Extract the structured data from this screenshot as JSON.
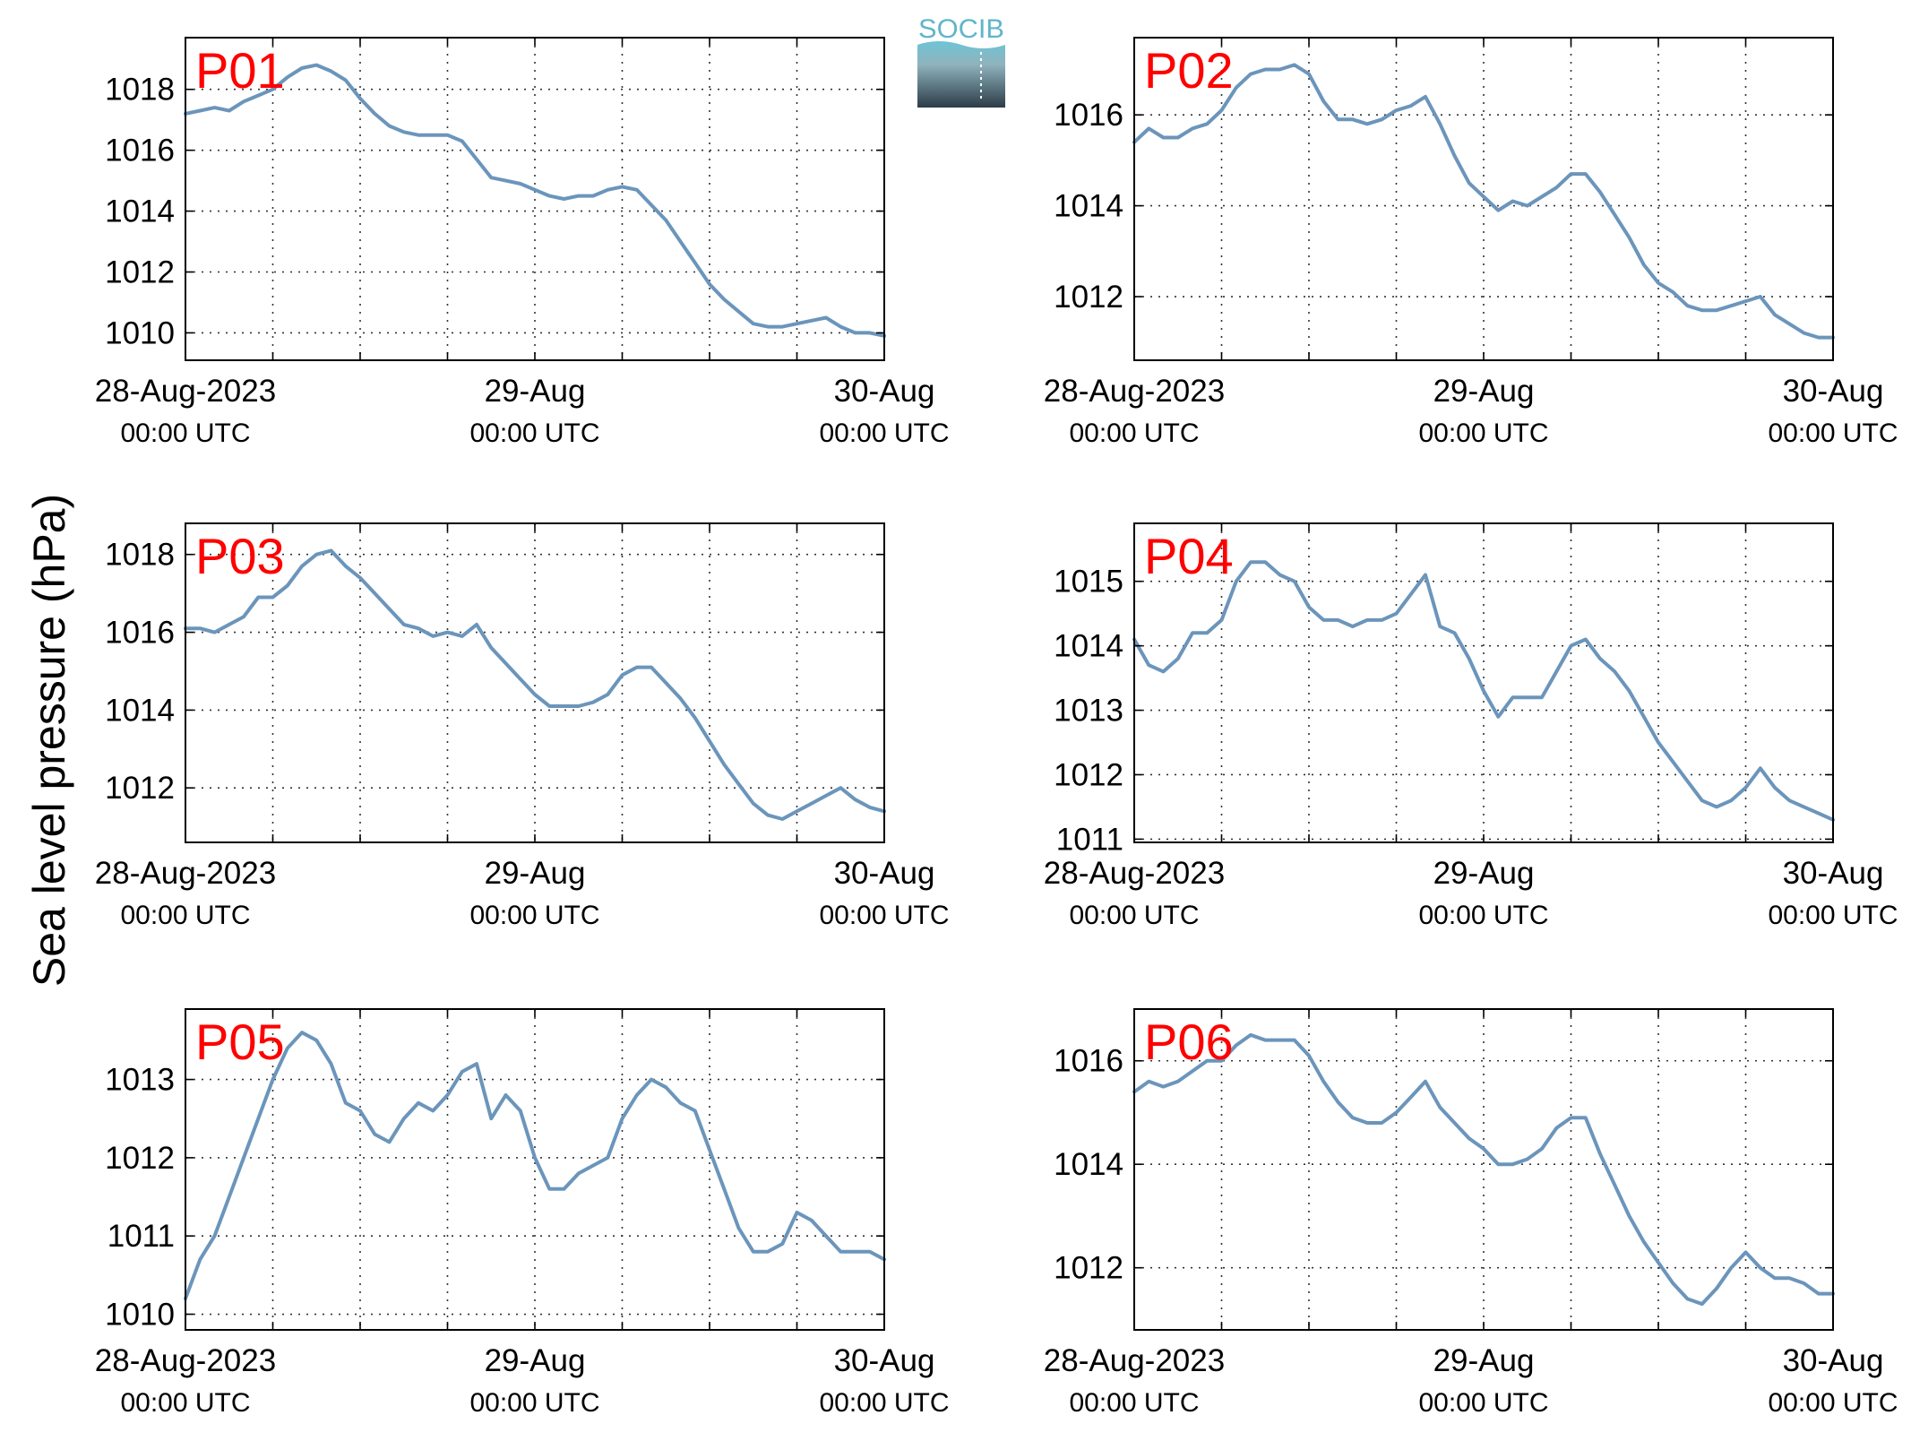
{
  "figure": {
    "ylabel": "Sea level pressure (hPa)",
    "logo_text": "SOCIB",
    "line_color": "#6b95bb",
    "label_color": "#ff0000"
  },
  "chart_data": [
    {
      "type": "line",
      "label": "P01",
      "grid": true,
      "xlim": [
        0,
        48
      ],
      "ylim": [
        1009.1,
        1019.7
      ],
      "yticks": [
        1010,
        1012,
        1014,
        1016,
        1018
      ],
      "xticks": [
        {
          "x": 0,
          "date": "28-Aug-2023",
          "time": "00:00 UTC"
        },
        {
          "x": 24,
          "date": "29-Aug",
          "time": "00:00 UTC"
        },
        {
          "x": 48,
          "date": "30-Aug",
          "time": "00:00 UTC"
        }
      ],
      "gridx": [
        6,
        12,
        18,
        30,
        36,
        42
      ],
      "x": [
        0,
        1,
        2,
        3,
        4,
        5,
        6,
        7,
        8,
        9,
        10,
        11,
        12,
        13,
        14,
        15,
        16,
        17,
        18,
        19,
        20,
        21,
        22,
        23,
        24,
        25,
        26,
        27,
        28,
        29,
        30,
        31,
        32,
        33,
        34,
        35,
        36,
        37,
        38,
        39,
        40,
        41,
        42,
        43,
        44,
        45,
        46,
        47,
        48
      ],
      "y": [
        1017.2,
        1017.3,
        1017.4,
        1017.3,
        1017.6,
        1017.8,
        1018.0,
        1018.4,
        1018.7,
        1018.8,
        1018.6,
        1018.3,
        1017.7,
        1017.2,
        1016.8,
        1016.6,
        1016.5,
        1016.5,
        1016.5,
        1016.3,
        1015.7,
        1015.1,
        1015.0,
        1014.9,
        1014.7,
        1014.5,
        1014.4,
        1014.5,
        1014.5,
        1014.7,
        1014.8,
        1014.7,
        1014.2,
        1013.7,
        1013.0,
        1012.3,
        1011.6,
        1011.1,
        1010.7,
        1010.3,
        1010.2,
        1010.2,
        1010.3,
        1010.4,
        1010.5,
        1010.2,
        1010.0,
        1010.0,
        1009.9
      ]
    },
    {
      "type": "line",
      "label": "P02",
      "grid": true,
      "xlim": [
        0,
        48
      ],
      "ylim": [
        1010.6,
        1017.7
      ],
      "yticks": [
        1012,
        1014,
        1016
      ],
      "xticks": [
        {
          "x": 0,
          "date": "28-Aug-2023",
          "time": "00:00 UTC"
        },
        {
          "x": 24,
          "date": "29-Aug",
          "time": "00:00 UTC"
        },
        {
          "x": 48,
          "date": "30-Aug",
          "time": "00:00 UTC"
        }
      ],
      "gridx": [
        6,
        12,
        18,
        30,
        36,
        42
      ],
      "x": [
        0,
        1,
        2,
        3,
        4,
        5,
        6,
        7,
        8,
        9,
        10,
        11,
        12,
        13,
        14,
        15,
        16,
        17,
        18,
        19,
        20,
        21,
        22,
        23,
        24,
        25,
        26,
        27,
        28,
        29,
        30,
        31,
        32,
        33,
        34,
        35,
        36,
        37,
        38,
        39,
        40,
        41,
        42,
        43,
        44,
        45,
        46,
        47,
        48
      ],
      "y": [
        1015.4,
        1015.7,
        1015.5,
        1015.5,
        1015.7,
        1015.8,
        1016.1,
        1016.6,
        1016.9,
        1017.0,
        1017.0,
        1017.1,
        1016.9,
        1016.3,
        1015.9,
        1015.9,
        1015.8,
        1015.9,
        1016.1,
        1016.2,
        1016.4,
        1015.8,
        1015.1,
        1014.5,
        1014.2,
        1013.9,
        1014.1,
        1014.0,
        1014.2,
        1014.4,
        1014.7,
        1014.7,
        1014.3,
        1013.8,
        1013.3,
        1012.7,
        1012.3,
        1012.1,
        1011.8,
        1011.7,
        1011.7,
        1011.8,
        1011.9,
        1012.0,
        1011.6,
        1011.4,
        1011.2,
        1011.1,
        1011.1
      ]
    },
    {
      "type": "line",
      "label": "P03",
      "grid": true,
      "xlim": [
        0,
        48
      ],
      "ylim": [
        1010.6,
        1018.8
      ],
      "yticks": [
        1012,
        1014,
        1016,
        1018
      ],
      "xticks": [
        {
          "x": 0,
          "date": "28-Aug-2023",
          "time": "00:00 UTC"
        },
        {
          "x": 24,
          "date": "29-Aug",
          "time": "00:00 UTC"
        },
        {
          "x": 48,
          "date": "30-Aug",
          "time": "00:00 UTC"
        }
      ],
      "gridx": [
        6,
        12,
        18,
        30,
        36,
        42
      ],
      "x": [
        0,
        1,
        2,
        3,
        4,
        5,
        6,
        7,
        8,
        9,
        10,
        11,
        12,
        13,
        14,
        15,
        16,
        17,
        18,
        19,
        20,
        21,
        22,
        23,
        24,
        25,
        26,
        27,
        28,
        29,
        30,
        31,
        32,
        33,
        34,
        35,
        36,
        37,
        38,
        39,
        40,
        41,
        42,
        43,
        44,
        45,
        46,
        47,
        48
      ],
      "y": [
        1016.1,
        1016.1,
        1016.0,
        1016.2,
        1016.4,
        1016.9,
        1016.9,
        1017.2,
        1017.7,
        1018.0,
        1018.1,
        1017.7,
        1017.4,
        1017.0,
        1016.6,
        1016.2,
        1016.1,
        1015.9,
        1016.0,
        1015.9,
        1016.2,
        1015.6,
        1015.2,
        1014.8,
        1014.4,
        1014.1,
        1014.1,
        1014.1,
        1014.2,
        1014.4,
        1014.9,
        1015.1,
        1015.1,
        1014.7,
        1014.3,
        1013.8,
        1013.2,
        1012.6,
        1012.1,
        1011.6,
        1011.3,
        1011.2,
        1011.4,
        1011.6,
        1011.8,
        1012.0,
        1011.7,
        1011.5,
        1011.4
      ]
    },
    {
      "type": "line",
      "label": "P04",
      "grid": true,
      "xlim": [
        0,
        48
      ],
      "ylim": [
        1010.95,
        1015.9
      ],
      "yticks": [
        1011,
        1012,
        1013,
        1014,
        1015
      ],
      "xticks": [
        {
          "x": 0,
          "date": "28-Aug-2023",
          "time": "00:00 UTC"
        },
        {
          "x": 24,
          "date": "29-Aug",
          "time": "00:00 UTC"
        },
        {
          "x": 48,
          "date": "30-Aug",
          "time": "00:00 UTC"
        }
      ],
      "gridx": [
        6,
        12,
        18,
        30,
        36,
        42
      ],
      "x": [
        0,
        1,
        2,
        3,
        4,
        5,
        6,
        7,
        8,
        9,
        10,
        11,
        12,
        13,
        14,
        15,
        16,
        17,
        18,
        19,
        20,
        21,
        22,
        23,
        24,
        25,
        26,
        27,
        28,
        29,
        30,
        31,
        32,
        33,
        34,
        35,
        36,
        37,
        38,
        39,
        40,
        41,
        42,
        43,
        44,
        45,
        46,
        47,
        48
      ],
      "y": [
        1014.1,
        1013.7,
        1013.6,
        1013.8,
        1014.2,
        1014.2,
        1014.4,
        1015.0,
        1015.3,
        1015.3,
        1015.1,
        1015.0,
        1014.6,
        1014.4,
        1014.4,
        1014.3,
        1014.4,
        1014.4,
        1014.5,
        1014.8,
        1015.1,
        1014.3,
        1014.2,
        1013.8,
        1013.3,
        1012.9,
        1013.2,
        1013.2,
        1013.2,
        1013.6,
        1014.0,
        1014.1,
        1013.8,
        1013.6,
        1013.3,
        1012.9,
        1012.5,
        1012.2,
        1011.9,
        1011.6,
        1011.5,
        1011.6,
        1011.8,
        1012.1,
        1011.8,
        1011.6,
        1011.5,
        1011.4,
        1011.3
      ]
    },
    {
      "type": "line",
      "label": "P05",
      "grid": true,
      "xlim": [
        0,
        48
      ],
      "ylim": [
        1009.8,
        1013.9
      ],
      "yticks": [
        1010,
        1011,
        1012,
        1013
      ],
      "xticks": [
        {
          "x": 0,
          "date": "28-Aug-2023",
          "time": "00:00 UTC"
        },
        {
          "x": 24,
          "date": "29-Aug",
          "time": "00:00 UTC"
        },
        {
          "x": 48,
          "date": "30-Aug",
          "time": "00:00 UTC"
        }
      ],
      "gridx": [
        6,
        12,
        18,
        30,
        36,
        42
      ],
      "x": [
        0,
        1,
        2,
        3,
        4,
        5,
        6,
        7,
        8,
        9,
        10,
        11,
        12,
        13,
        14,
        15,
        16,
        17,
        18,
        19,
        20,
        21,
        22,
        23,
        24,
        25,
        26,
        27,
        28,
        29,
        30,
        31,
        32,
        33,
        34,
        35,
        36,
        37,
        38,
        39,
        40,
        41,
        42,
        43,
        44,
        45,
        46,
        47,
        48
      ],
      "y": [
        1010.2,
        1010.7,
        1011.0,
        1011.5,
        1012.0,
        1012.5,
        1013.0,
        1013.4,
        1013.6,
        1013.5,
        1013.2,
        1012.7,
        1012.6,
        1012.3,
        1012.2,
        1012.5,
        1012.7,
        1012.6,
        1012.8,
        1013.1,
        1013.2,
        1012.5,
        1012.8,
        1012.6,
        1012.0,
        1011.6,
        1011.6,
        1011.8,
        1011.9,
        1012.0,
        1012.5,
        1012.8,
        1013.0,
        1012.9,
        1012.7,
        1012.6,
        1012.1,
        1011.6,
        1011.1,
        1010.8,
        1010.8,
        1010.9,
        1011.3,
        1011.2,
        1011.0,
        1010.8,
        1010.8,
        1010.8,
        1010.7
      ]
    },
    {
      "type": "line",
      "label": "P06",
      "grid": true,
      "xlim": [
        0,
        48
      ],
      "ylim": [
        1010.8,
        1017.0
      ],
      "yticks": [
        1012,
        1014,
        1016
      ],
      "xticks": [
        {
          "x": 0,
          "date": "28-Aug-2023",
          "time": "00:00 UTC"
        },
        {
          "x": 24,
          "date": "29-Aug",
          "time": "00:00 UTC"
        },
        {
          "x": 48,
          "date": "30-Aug",
          "time": "00:00 UTC"
        }
      ],
      "gridx": [
        6,
        12,
        18,
        30,
        36,
        42
      ],
      "x": [
        0,
        1,
        2,
        3,
        4,
        5,
        6,
        7,
        8,
        9,
        10,
        11,
        12,
        13,
        14,
        15,
        16,
        17,
        18,
        19,
        20,
        21,
        22,
        23,
        24,
        25,
        26,
        27,
        28,
        29,
        30,
        31,
        32,
        33,
        34,
        35,
        36,
        37,
        38,
        39,
        40,
        41,
        42,
        43,
        44,
        45,
        46,
        47,
        48
      ],
      "y": [
        1015.4,
        1015.6,
        1015.5,
        1015.6,
        1015.8,
        1016.0,
        1016.0,
        1016.3,
        1016.5,
        1016.4,
        1016.4,
        1016.4,
        1016.1,
        1015.6,
        1015.2,
        1014.9,
        1014.8,
        1014.8,
        1015.0,
        1015.3,
        1015.6,
        1015.1,
        1014.8,
        1014.5,
        1014.3,
        1014.0,
        1014.0,
        1014.1,
        1014.3,
        1014.7,
        1014.9,
        1014.9,
        1014.2,
        1013.6,
        1013.0,
        1012.5,
        1012.1,
        1011.7,
        1011.4,
        1011.3,
        1011.6,
        1012.0,
        1012.3,
        1012.0,
        1011.8,
        1011.8,
        1011.7,
        1011.5,
        1011.5
      ]
    }
  ]
}
